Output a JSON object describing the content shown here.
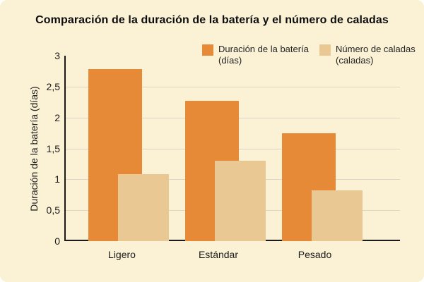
{
  "title": "Comparación de la duración de la batería y el número de caladas",
  "colors": {
    "background": "#FBF2D6",
    "grid": "#DCD5C5",
    "axis": "#1A1A1A",
    "text": "#1A1A1A",
    "series_battery": "#E78A38",
    "series_puffs": "#EAC893"
  },
  "chart_data": {
    "type": "bar",
    "style": "overlapping-grouped-bars",
    "title": "Comparación de la duración de la batería y el número de caladas",
    "categories": [
      "Ligero",
      "Estándar",
      "Pesado"
    ],
    "series": [
      {
        "name": "Duración de la batería (días)",
        "legend_lines": [
          "Duración de la batería",
          "(días)"
        ],
        "color": "#E78A38",
        "values": [
          2.78,
          2.27,
          1.75
        ]
      },
      {
        "name": "Número de caladas (caladas)",
        "legend_lines": [
          "Número de caladas",
          "(caladas)"
        ],
        "color": "#EAC893",
        "values": [
          1.08,
          1.3,
          0.82
        ]
      }
    ],
    "xlabel": "",
    "ylabel": "Duración de la batería (días)",
    "ylim": [
      0,
      3
    ],
    "yticks": [
      0,
      0.5,
      1,
      1.5,
      2,
      2.5,
      3
    ],
    "ytick_labels": [
      "0",
      "0,5",
      "1",
      "1,5",
      "2",
      "2,5",
      "3"
    ],
    "grid": "horizontal",
    "legend_position": "top-right"
  }
}
